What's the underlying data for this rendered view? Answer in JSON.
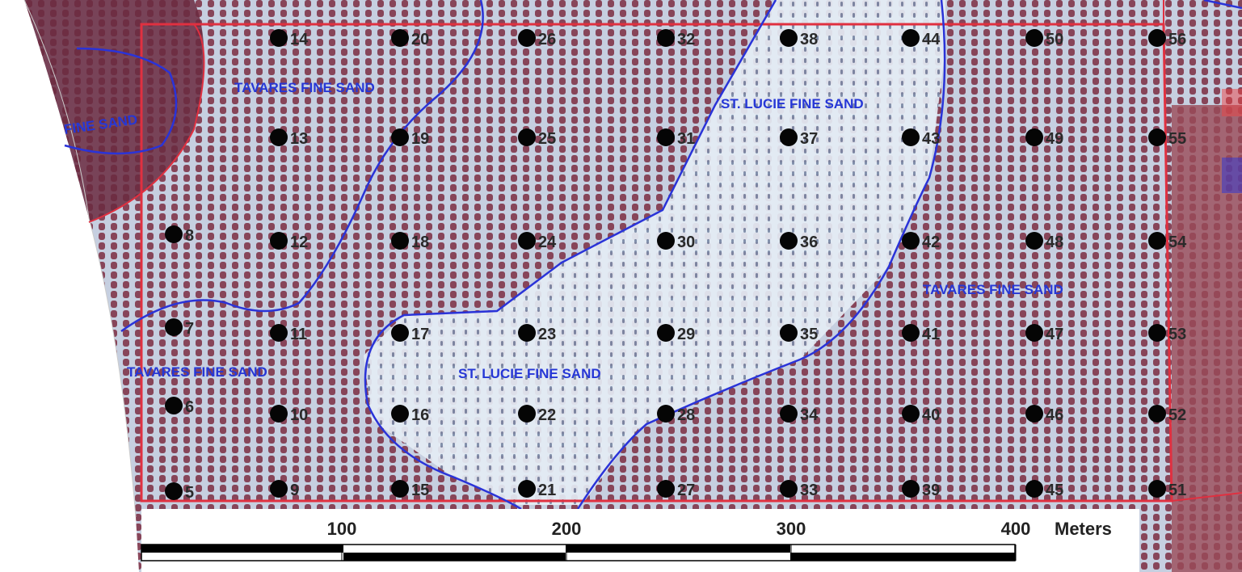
{
  "points": {
    "columns": [
      [
        "5",
        "6",
        "7",
        "8"
      ],
      [
        "9",
        "10",
        "11",
        "12",
        "13",
        "14"
      ],
      [
        "15",
        "16",
        "17",
        "18",
        "19",
        "20"
      ],
      [
        "21",
        "22",
        "23",
        "24",
        "25",
        "26"
      ],
      [
        "27",
        "28",
        "29",
        "30",
        "31",
        "32"
      ],
      [
        "33",
        "34",
        "35",
        "36",
        "37",
        "38"
      ],
      [
        "39",
        "40",
        "41",
        "42",
        "43",
        "44"
      ],
      [
        "45",
        "46",
        "47",
        "48",
        "49",
        "50"
      ],
      [
        "51",
        "52",
        "53",
        "54",
        "55",
        "56"
      ]
    ]
  },
  "soil_labels": [
    "TAVARES FINE SAND",
    "FINE SAND",
    "ST. LUCIE FINE SAND",
    "ST. LUCIE FINE SAND",
    "TAVARES FINE SAND",
    "TAVARES FINE SAND"
  ],
  "scale": {
    "ticks": [
      100,
      200,
      300,
      400
    ],
    "unit": "Meters"
  }
}
